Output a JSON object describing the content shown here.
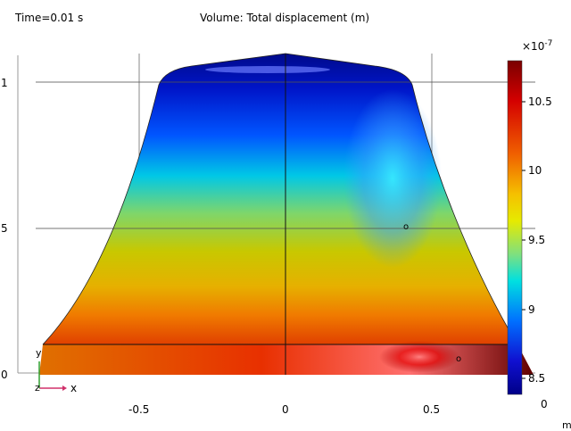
{
  "header": {
    "time_label": "Time=0.01 s",
    "title": "Volume: Total displacement (m)"
  },
  "axes": {
    "x_ticks": [
      "-0.5",
      "0",
      "0.5"
    ],
    "y_ticks": [
      "1",
      "5",
      "0"
    ],
    "x_unit": "m",
    "triad": {
      "y": "y",
      "z": "z",
      "x": "x"
    }
  },
  "colorbar": {
    "exponent": "×10",
    "exponent_power": "-7",
    "ticks": [
      "10.5",
      "10",
      "9.5",
      "9",
      "8.5"
    ],
    "min_label": "0",
    "colors": [
      "#7a0000",
      "#d40000",
      "#f06000",
      "#f5c000",
      "#e6ea00",
      "#7fe07f",
      "#00e0e0",
      "#0070ff",
      "#1010d0",
      "#000088"
    ]
  },
  "annotations": {
    "marker_a": "o",
    "marker_b": "o"
  }
}
